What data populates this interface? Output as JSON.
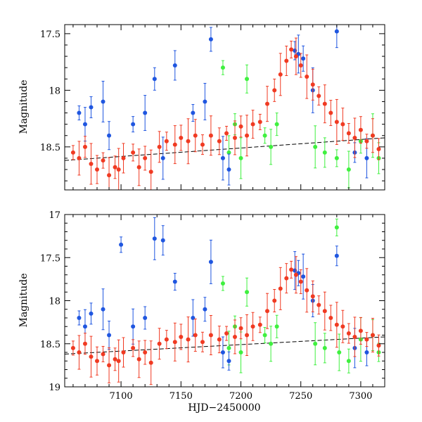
{
  "chart_data": [
    {
      "type": "scatter",
      "panel": "top",
      "xlabel": "",
      "ylabel": "Magnitude",
      "xlim": [
        7053,
        7320
      ],
      "ylim": [
        18.88,
        17.42
      ],
      "x_ticks": [
        7100,
        7150,
        7200,
        7250,
        7300
      ],
      "x_tick_labels": [
        "",
        "",
        "",
        "",
        ""
      ],
      "y_ticks": [
        17.5,
        18,
        18.5
      ],
      "y_tick_labels": [
        "17.5",
        "18",
        "18.5"
      ],
      "reference_line": {
        "x_start": 7053,
        "x_end": 7320,
        "y_start": 18.62,
        "y_end": 18.42
      },
      "series_colors": {
        "red": "#f03a22",
        "blue": "#1f56e0",
        "green": "#3ff03f"
      },
      "series": [
        {
          "name": "red",
          "x": [
            7060,
            7065,
            7070,
            7075,
            7080,
            7085,
            7090,
            7095,
            7098,
            7102,
            7110,
            7115,
            7120,
            7125,
            7132,
            7138,
            7145,
            7150,
            7156,
            7162,
            7168,
            7175,
            7182,
            7188,
            7195,
            7200,
            7205,
            7210,
            7216,
            7222,
            7228,
            7233,
            7238,
            7242,
            7246,
            7250,
            7255,
            7260,
            7265,
            7270,
            7275,
            7280,
            7285,
            7290,
            7295,
            7300,
            7305,
            7310,
            7315
          ],
          "values": [
            18.55,
            18.6,
            18.5,
            18.65,
            18.7,
            18.62,
            18.75,
            18.68,
            18.7,
            18.6,
            18.55,
            18.68,
            18.6,
            18.72,
            18.5,
            18.45,
            18.48,
            18.42,
            18.45,
            18.4,
            18.48,
            18.4,
            18.45,
            18.38,
            18.42,
            18.32,
            18.4,
            18.3,
            18.28,
            18.12,
            18.0,
            17.86,
            17.74,
            17.64,
            17.7,
            17.78,
            17.88,
            17.95,
            18.05,
            18.12,
            18.2,
            18.28,
            18.3,
            18.38,
            18.42,
            18.35,
            18.45,
            18.4,
            18.52
          ]
        },
        {
          "name": "blue",
          "x": [
            7065,
            7070,
            7075,
            7085,
            7090,
            7110,
            7120,
            7128,
            7135,
            7145,
            7160,
            7170,
            7175,
            7185,
            7190,
            7245,
            7248,
            7252,
            7260,
            7280,
            7295,
            7305
          ],
          "values": [
            18.2,
            18.3,
            18.15,
            18.1,
            18.4,
            18.3,
            18.2,
            17.9,
            18.6,
            17.78,
            18.2,
            18.1,
            17.55,
            18.6,
            18.7,
            17.65,
            17.68,
            17.72,
            18.0,
            17.48,
            18.55,
            18.6
          ]
        },
        {
          "name": "green",
          "x": [
            7185,
            7190,
            7195,
            7200,
            7205,
            7220,
            7225,
            7230,
            7262,
            7270,
            7280,
            7290,
            7300,
            7310,
            7315
          ],
          "values": [
            17.8,
            18.55,
            18.3,
            18.6,
            17.9,
            18.4,
            18.5,
            18.3,
            18.5,
            18.55,
            18.6,
            18.7,
            18.45,
            18.4,
            18.6
          ]
        }
      ]
    },
    {
      "type": "scatter",
      "panel": "bottom",
      "xlabel": "HJD−2450000",
      "ylabel": "Magnitude",
      "xlim": [
        7053,
        7320
      ],
      "ylim": [
        19.0,
        17.0
      ],
      "x_ticks": [
        7100,
        7150,
        7200,
        7250,
        7300
      ],
      "x_tick_labels": [
        "7100",
        "7150",
        "7200",
        "7250",
        "7300"
      ],
      "y_ticks": [
        17,
        17.5,
        18,
        18.5,
        19
      ],
      "y_tick_labels": [
        "17",
        "17.5",
        "18",
        "18.5",
        "19"
      ],
      "reference_line": {
        "x_start": 7053,
        "x_end": 7320,
        "y_start": 18.62,
        "y_end": 18.42
      },
      "series_colors": {
        "red": "#f03a22",
        "blue": "#1f56e0",
        "green": "#3ff03f"
      },
      "series": [
        {
          "name": "red",
          "x": [
            7060,
            7065,
            7070,
            7075,
            7080,
            7085,
            7090,
            7095,
            7098,
            7102,
            7110,
            7115,
            7120,
            7125,
            7132,
            7138,
            7145,
            7150,
            7156,
            7162,
            7168,
            7175,
            7182,
            7188,
            7195,
            7200,
            7205,
            7210,
            7216,
            7222,
            7228,
            7233,
            7238,
            7242,
            7246,
            7250,
            7255,
            7260,
            7265,
            7270,
            7275,
            7280,
            7285,
            7290,
            7295,
            7300,
            7305,
            7310,
            7315
          ],
          "values": [
            18.55,
            18.6,
            18.5,
            18.65,
            18.7,
            18.62,
            18.75,
            18.68,
            18.7,
            18.6,
            18.55,
            18.68,
            18.6,
            18.72,
            18.5,
            18.45,
            18.48,
            18.42,
            18.45,
            18.4,
            18.48,
            18.4,
            18.45,
            18.38,
            18.42,
            18.32,
            18.4,
            18.3,
            18.28,
            18.12,
            18.0,
            17.86,
            17.74,
            17.64,
            17.7,
            17.78,
            17.88,
            17.95,
            18.05,
            18.12,
            18.2,
            18.28,
            18.3,
            18.38,
            18.42,
            18.35,
            18.45,
            18.4,
            18.52
          ]
        },
        {
          "name": "blue",
          "x": [
            7065,
            7070,
            7075,
            7085,
            7090,
            7100,
            7110,
            7120,
            7128,
            7135,
            7145,
            7160,
            7170,
            7175,
            7185,
            7190,
            7245,
            7248,
            7252,
            7260,
            7280,
            7295,
            7305
          ],
          "values": [
            18.2,
            18.3,
            18.15,
            18.1,
            18.4,
            17.35,
            18.3,
            18.2,
            17.28,
            17.3,
            17.78,
            18.2,
            18.1,
            17.55,
            18.6,
            18.7,
            17.65,
            17.68,
            17.72,
            18.0,
            17.48,
            18.55,
            18.6
          ]
        },
        {
          "name": "green",
          "x": [
            7185,
            7190,
            7195,
            7200,
            7205,
            7220,
            7225,
            7230,
            7262,
            7270,
            7280,
            7282,
            7290,
            7300,
            7310,
            7315
          ],
          "values": [
            17.8,
            18.55,
            18.3,
            18.6,
            17.9,
            18.4,
            18.5,
            18.3,
            18.5,
            18.55,
            17.15,
            18.6,
            18.7,
            18.45,
            18.4,
            18.6
          ]
        }
      ]
    }
  ]
}
